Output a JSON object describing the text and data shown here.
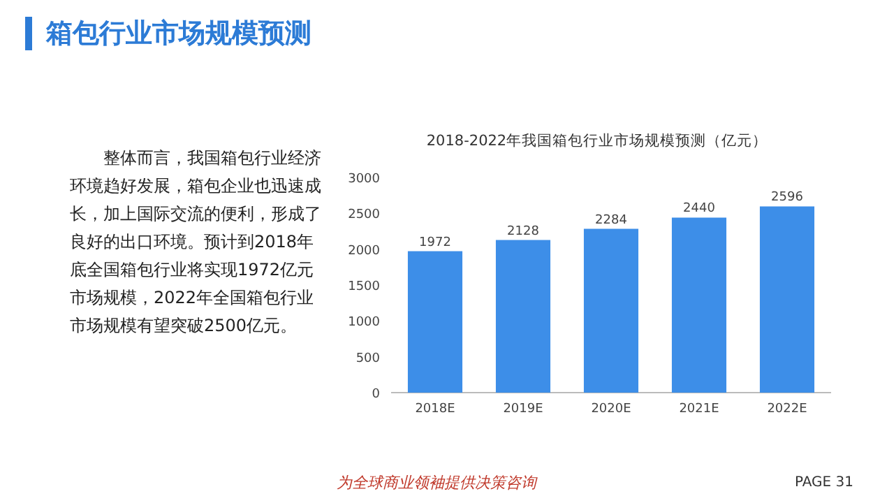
{
  "chart_data": {
    "type": "bar",
    "title": "箱包行业市场规模预测",
    "subtitle": "2018-2022年我国箱包行业市场规模预测（亿元）",
    "categories": [
      "2018E",
      "2019E",
      "2020E",
      "2021E",
      "2022E"
    ],
    "values": [
      1972,
      2128,
      2284,
      2440,
      2596
    ],
    "color": "#3d8ee8",
    "ylim": [
      0,
      3000
    ],
    "yticks": [
      0,
      500,
      1000,
      1500,
      2000,
      2500,
      3000
    ],
    "data_labels": true,
    "annotations": [
      "整体而言，我国箱包行业经济环境趋好发展，箱包企业也迅速成长，加上国际交流的便利，形成了良好的出口环境。预计到2018年底全国箱包行业将实现1972亿元市场规模，2022年全国箱包行业市场规模有望突破2500亿元。",
      "为全球商业领袖提供决策咨询",
      "PAGE 31"
    ]
  }
}
